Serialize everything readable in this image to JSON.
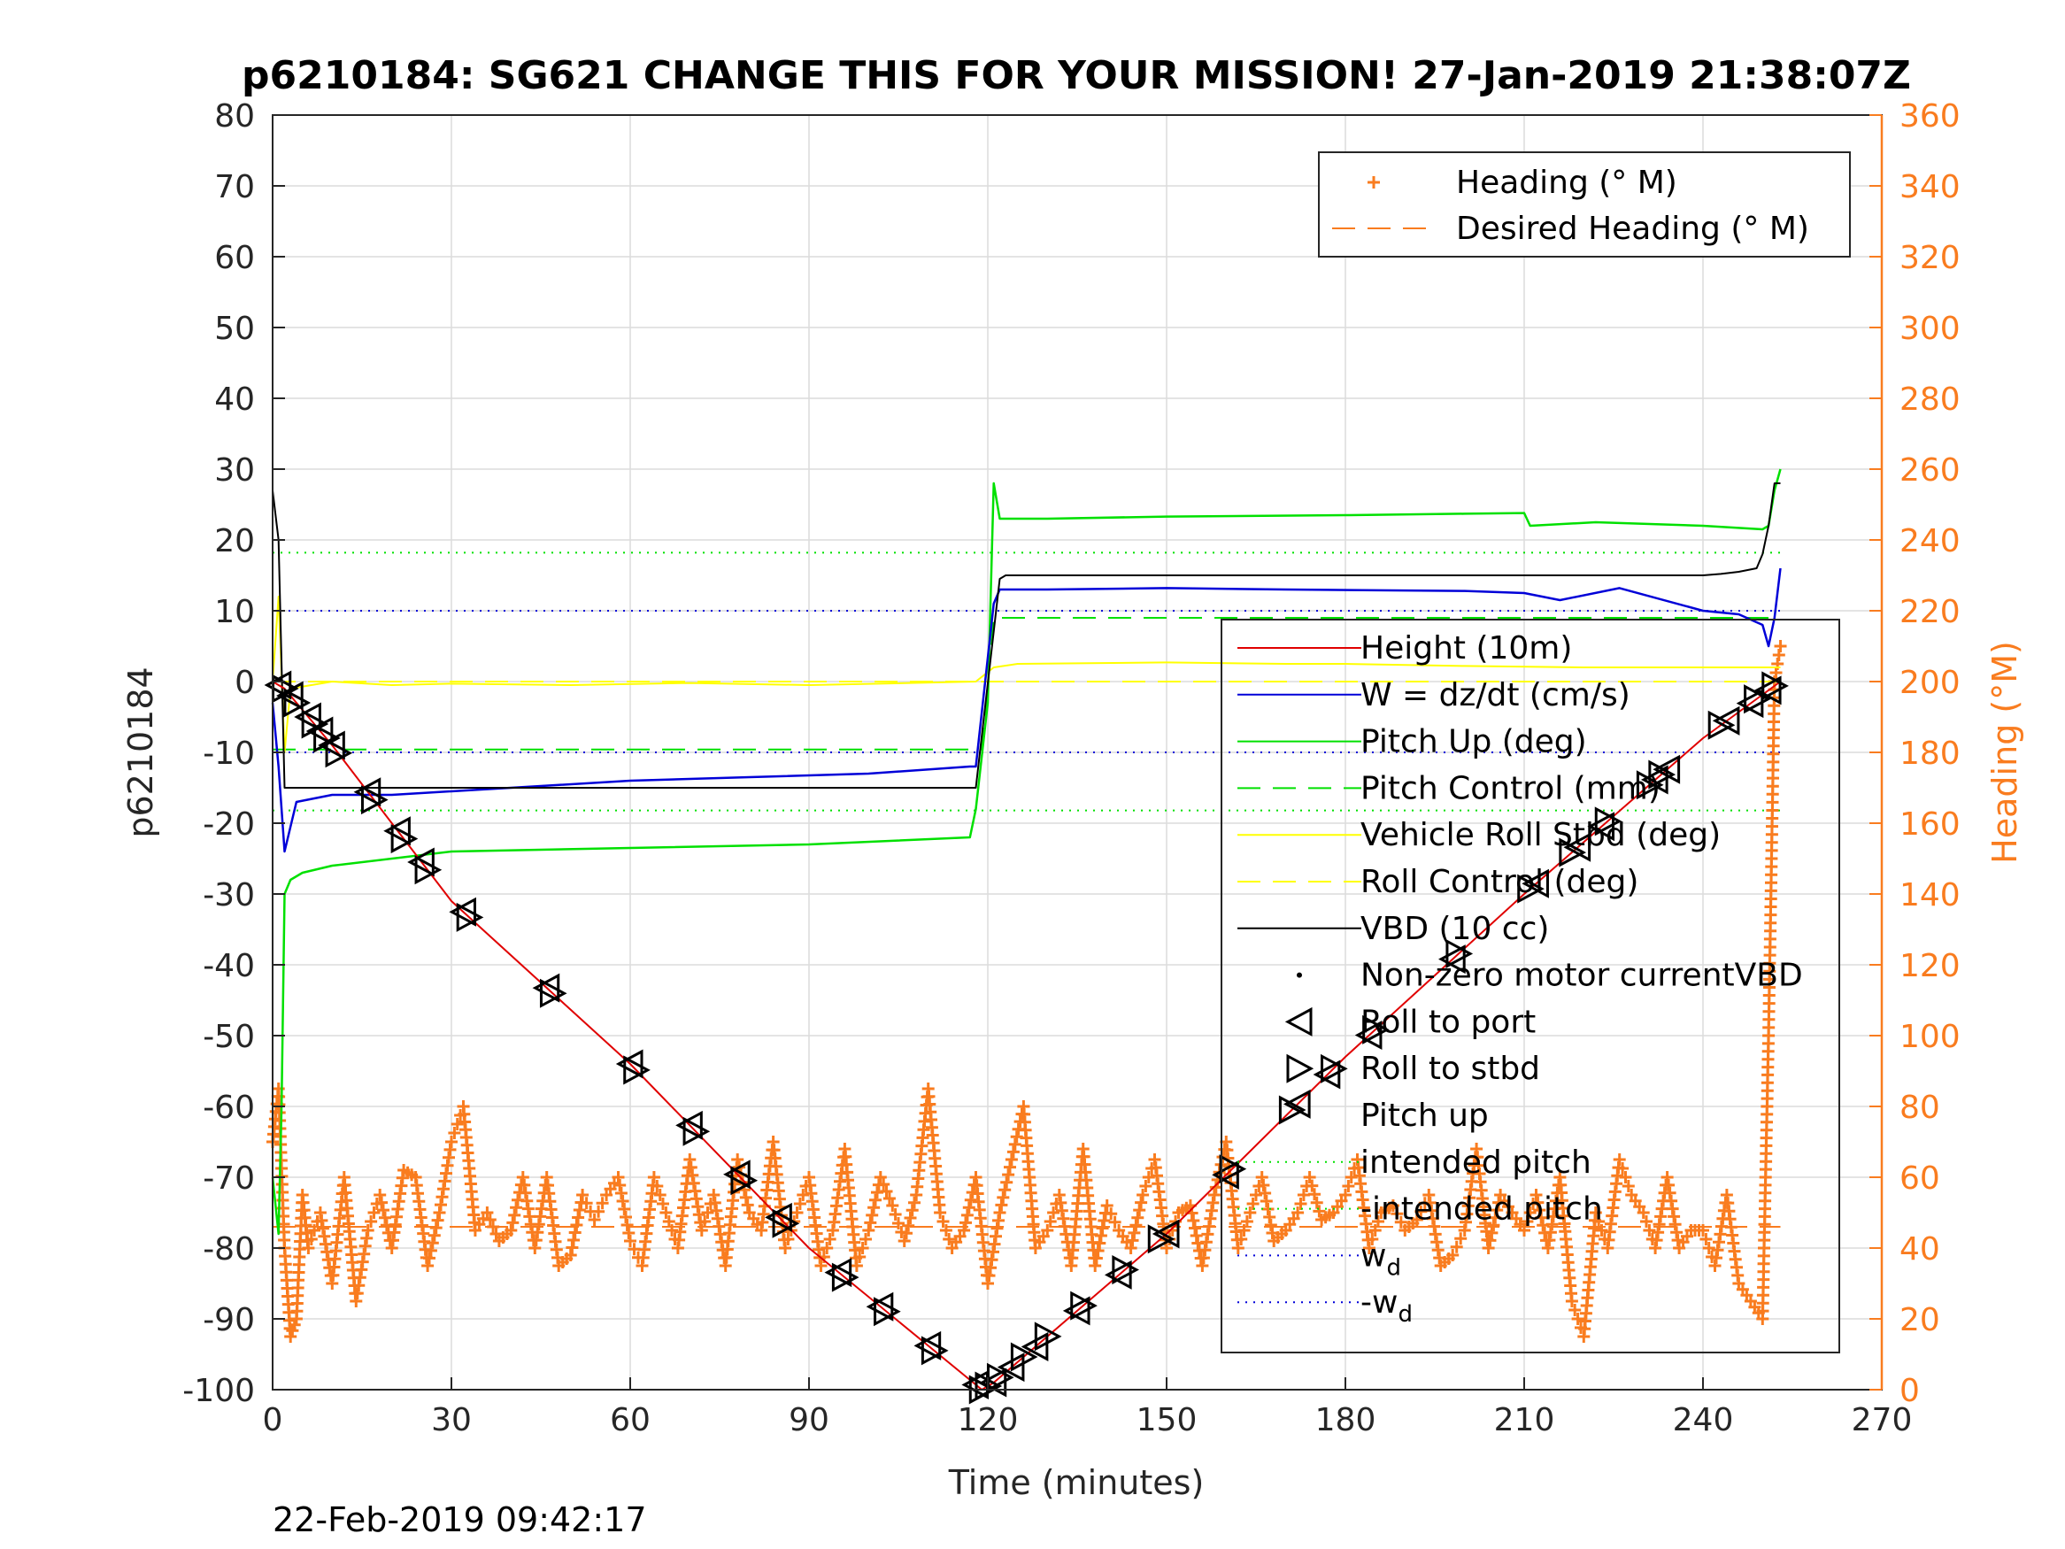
{
  "chart_data": {
    "type": "line",
    "title": "p6210184: SG621 CHANGE THIS FOR YOUR MISSION! 27-Jan-2019 21:38:07Z",
    "xlabel": "Time (minutes)",
    "ylabel": "p6210184",
    "y2label": "Heading (°M)",
    "footer": "22-Feb-2019 09:42:17",
    "xlim": [
      0,
      270
    ],
    "ylim": [
      -100,
      80
    ],
    "y2lim": [
      0,
      360
    ],
    "xticks": [
      0,
      30,
      60,
      90,
      120,
      150,
      180,
      210,
      240,
      270
    ],
    "yticks": [
      -100,
      -90,
      -80,
      -70,
      -60,
      -50,
      -40,
      -30,
      -20,
      -10,
      0,
      10,
      20,
      30,
      40,
      50,
      60,
      70,
      80
    ],
    "y2ticks": [
      0,
      20,
      40,
      60,
      80,
      100,
      120,
      140,
      160,
      180,
      200,
      220,
      240,
      260,
      280,
      300,
      320,
      340,
      360
    ],
    "grid": true,
    "colors": {
      "heading": "#f97c1f",
      "height": "#e00000",
      "w": "#0000d8",
      "pitch": "#00e000",
      "roll": "#ffff00",
      "vbd": "#000000",
      "right_axis": "#f97c1f"
    },
    "legend_heading": {
      "placement": "top-right",
      "entries": [
        "Heading (° M)",
        "Desired Heading (° M)"
      ]
    },
    "legend_main": {
      "placement": "right",
      "entries": [
        "Height (10m)",
        "W = dz/dt (cm/s)",
        "Pitch Up (deg)",
        "Pitch Control (mm)",
        "Vehicle Roll Stbd (deg)",
        "Roll Control (deg)",
        "VBD (10 cc)",
        "Non-zero motor currentVBD",
        "Roll to port",
        "Roll to stbd",
        "Pitch up",
        "intended pitch",
        "-intended pitch",
        "w",
        "-w"
      ],
      "subscript": "d"
    },
    "series": [
      {
        "name": "Height (10m)",
        "axis": "left",
        "x": [
          0,
          2,
          10,
          30,
          60,
          90,
          119,
          121,
          150,
          180,
          210,
          240,
          253
        ],
        "y": [
          0,
          -1,
          -9,
          -31,
          -54,
          -80,
          -100,
          -99,
          -78,
          -53,
          -30,
          -8,
          0
        ]
      },
      {
        "name": "W = dz/dt (cm/s)",
        "axis": "left",
        "x": [
          0,
          1,
          2,
          4,
          10,
          20,
          40,
          60,
          80,
          100,
          117,
          118,
          121,
          122,
          130,
          150,
          170,
          200,
          210,
          216,
          226,
          240,
          246,
          250,
          251,
          252,
          253
        ],
        "y": [
          -3,
          -12,
          -24,
          -17,
          -16,
          -16,
          -15,
          -14,
          -13.5,
          -13,
          -12,
          -12,
          11,
          13,
          13,
          13.2,
          13,
          12.8,
          12.5,
          11.5,
          13.2,
          10,
          9.5,
          8,
          5,
          9,
          16
        ]
      },
      {
        "name": "Pitch Up (deg)",
        "axis": "left",
        "x": [
          0,
          1,
          1.5,
          2,
          3,
          5,
          10,
          30,
          60,
          90,
          117,
          118,
          120,
          121,
          122,
          130,
          150,
          180,
          200,
          210,
          211,
          222,
          240,
          250,
          251,
          252,
          253
        ],
        "y": [
          -70,
          -78,
          -60,
          -30,
          -28,
          -27,
          -26,
          -24,
          -23.5,
          -23,
          -22,
          -18,
          -3,
          28,
          23,
          23,
          23.3,
          23.5,
          23.7,
          23.8,
          22,
          22.5,
          22,
          21.5,
          22,
          27,
          30
        ]
      },
      {
        "name": "Pitch Control (mm)",
        "axis": "left",
        "x": [
          0,
          118,
          119,
          121,
          253
        ],
        "y": [
          -9.6,
          -9.6,
          -9.6,
          9,
          9
        ]
      },
      {
        "name": "Vehicle Roll Stbd (deg)",
        "axis": "left",
        "x": [
          0,
          1,
          2,
          3,
          10,
          20,
          30,
          50,
          70,
          90,
          118,
          121,
          125,
          150,
          170,
          180,
          200,
          220,
          240,
          253
        ],
        "y": [
          0,
          12,
          -10,
          -1,
          0,
          -0.5,
          -0.3,
          -0.5,
          -0.2,
          -0.5,
          0,
          2,
          2.5,
          2.7,
          2.5,
          2.5,
          2.2,
          2,
          2,
          2
        ]
      },
      {
        "name": "Roll Control (deg)",
        "axis": "left",
        "x": [
          0,
          253
        ],
        "y": [
          0,
          0
        ]
      },
      {
        "name": "VBD (10 cc)",
        "axis": "left",
        "x": [
          0,
          1,
          2,
          117,
          118,
          122,
          123,
          240,
          243,
          246,
          249,
          250,
          251,
          252,
          253
        ],
        "y": [
          27,
          20,
          -15,
          -15,
          -15,
          14.5,
          15,
          15,
          15.2,
          15.5,
          16,
          18,
          22,
          28,
          28
        ]
      },
      {
        "name": "intended pitch",
        "axis": "left",
        "x": [
          0,
          253
        ],
        "y": [
          18.2,
          18.2
        ]
      },
      {
        "name": "-intended pitch",
        "axis": "left",
        "x": [
          0,
          253
        ],
        "y": [
          -18.2,
          -18.2
        ]
      },
      {
        "name": "w",
        "axis": "left",
        "x": [
          0,
          253
        ],
        "y": [
          10,
          10
        ]
      },
      {
        "name": "-w",
        "axis": "left",
        "x": [
          0,
          253
        ],
        "y": [
          -10,
          -10
        ]
      },
      {
        "name": "Heading (° M)",
        "axis": "right",
        "x": [
          0,
          1,
          2,
          3,
          4,
          5,
          6,
          8,
          10,
          12,
          14,
          16,
          18,
          20,
          22,
          24,
          26,
          28,
          30,
          32,
          34,
          36,
          38,
          40,
          42,
          44,
          46,
          48,
          50,
          52,
          54,
          56,
          58,
          60,
          62,
          64,
          66,
          68,
          70,
          72,
          74,
          76,
          78,
          80,
          82,
          84,
          86,
          88,
          90,
          92,
          94,
          96,
          98,
          100,
          102,
          104,
          106,
          108,
          110,
          112,
          114,
          116,
          118,
          120,
          122,
          124,
          126,
          128,
          130,
          132,
          134,
          136,
          138,
          140,
          142,
          144,
          146,
          148,
          150,
          152,
          154,
          156,
          158,
          160,
          162,
          164,
          166,
          168,
          170,
          172,
          174,
          176,
          178,
          180,
          182,
          184,
          186,
          188,
          190,
          192,
          194,
          196,
          198,
          200,
          202,
          204,
          206,
          208,
          210,
          212,
          214,
          216,
          218,
          220,
          222,
          224,
          226,
          228,
          230,
          232,
          234,
          236,
          238,
          240,
          242,
          244,
          246,
          248,
          250,
          251,
          252,
          253
        ],
        "y": [
          70,
          85,
          40,
          15,
          20,
          55,
          40,
          50,
          30,
          60,
          25,
          45,
          55,
          40,
          62,
          60,
          35,
          50,
          70,
          80,
          45,
          50,
          42,
          45,
          60,
          40,
          60,
          35,
          38,
          55,
          48,
          55,
          60,
          42,
          35,
          60,
          50,
          40,
          65,
          45,
          55,
          35,
          65,
          50,
          45,
          70,
          40,
          50,
          60,
          35,
          45,
          68,
          35,
          45,
          60,
          52,
          42,
          55,
          85,
          50,
          40,
          45,
          60,
          30,
          50,
          65,
          80,
          40,
          45,
          55,
          35,
          68,
          35,
          52,
          45,
          40,
          55,
          65,
          40,
          50,
          52,
          35,
          55,
          70,
          40,
          50,
          60,
          42,
          45,
          50,
          60,
          48,
          50,
          55,
          65,
          40,
          50,
          52,
          45,
          48,
          55,
          35,
          38,
          45,
          68,
          40,
          55,
          50,
          45,
          55,
          40,
          60,
          25,
          15,
          50,
          40,
          65,
          55,
          50,
          40,
          60,
          40,
          45,
          45,
          35,
          55,
          30,
          25,
          20,
          100,
          200,
          210
        ]
      },
      {
        "name": "Desired Heading (° M)",
        "axis": "right",
        "x": [
          0,
          253
        ],
        "y": [
          46,
          46
        ]
      }
    ],
    "markers": {
      "roll_to_port_x": [
        1,
        3,
        6,
        8,
        10,
        16,
        21,
        25,
        32,
        46,
        60,
        70,
        78,
        85,
        95,
        102,
        110,
        118,
        121,
        124,
        128,
        135,
        142,
        150,
        160,
        172,
        177,
        184,
        198,
        212,
        219,
        223,
        232,
        234,
        244,
        248,
        251
      ],
      "roll_to_stbd_x": [
        2,
        4,
        7,
        9,
        11,
        17,
        22,
        26,
        33,
        47,
        61,
        71,
        79,
        86,
        96,
        103,
        111,
        119,
        120,
        122,
        126,
        130,
        136,
        143,
        149,
        161,
        171,
        178,
        185,
        199,
        211,
        218,
        224,
        231,
        233,
        243,
        249,
        252
      ]
    }
  }
}
